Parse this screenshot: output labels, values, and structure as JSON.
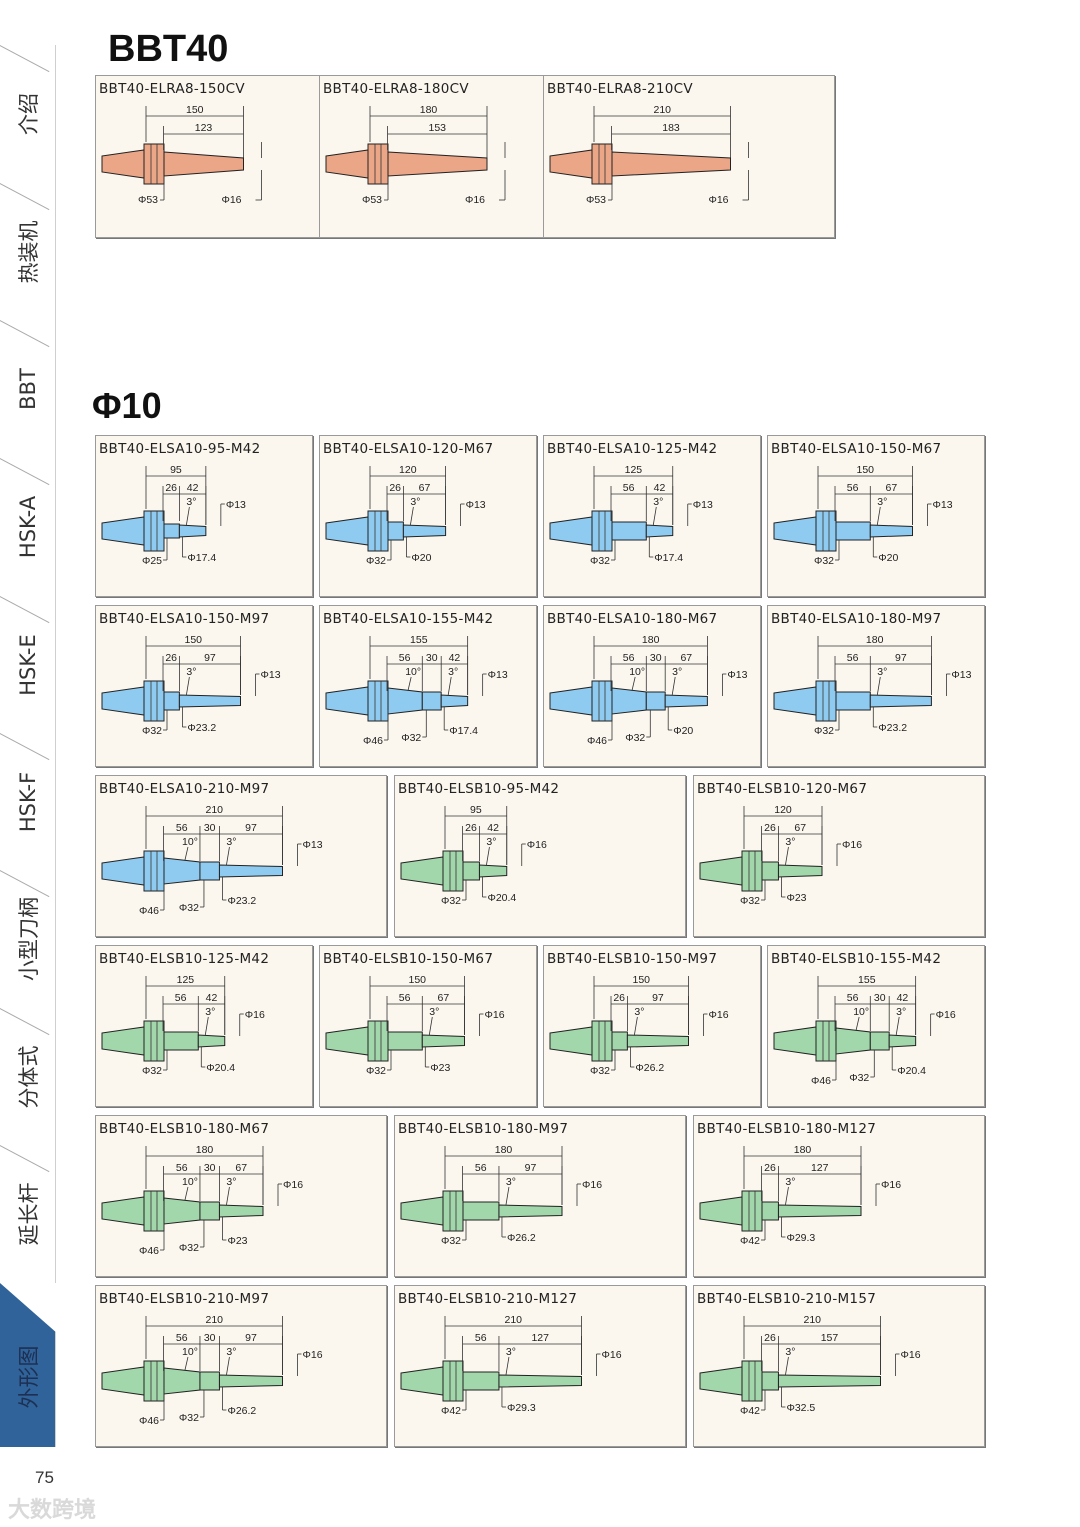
{
  "sidebar": {
    "active_color": "#2f6399",
    "tabs": [
      {
        "label": "介绍",
        "active": false
      },
      {
        "label": "热装机",
        "active": false
      },
      {
        "label": "BBT",
        "active": false
      },
      {
        "label": "HSK-A",
        "active": false
      },
      {
        "label": "HSK-E",
        "active": false
      },
      {
        "label": "HSK-F",
        "active": false
      },
      {
        "label": "小型刀柄",
        "active": false
      },
      {
        "label": "分体式",
        "active": false
      },
      {
        "label": "延长杆",
        "active": false
      },
      {
        "label": "外形图",
        "active": true
      }
    ]
  },
  "colors": {
    "orange": "#eba587",
    "blue": "#8fcaf0",
    "green": "#a2d6ab"
  },
  "sections": [
    {
      "title": "BBT40",
      "rows": [
        [
          {
            "title": "BBT40-ELRA8-150CV",
            "color": "orange",
            "total": "150",
            "second": "123",
            "dias": [
              "Φ53"
            ],
            "tip": "Φ16"
          },
          {
            "title": "BBT40-ELRA8-180CV",
            "color": "orange",
            "total": "180",
            "second": "153",
            "dias": [
              "Φ53"
            ],
            "tip": "Φ16"
          },
          {
            "title": "BBT40-ELRA8-210CV",
            "color": "orange",
            "total": "210",
            "second": "183",
            "dias": [
              "Φ53"
            ],
            "tip": "Φ16"
          }
        ]
      ]
    },
    {
      "title": "Φ10",
      "rows": [
        [
          {
            "title": "BBT40-ELSA10-95-M42",
            "color": "blue",
            "total": "95",
            "segs": [
              "26",
              "42"
            ],
            "angles": [
              "3°"
            ],
            "dias": [
              "Φ25",
              "Φ17.4"
            ],
            "tip": "Φ13"
          },
          {
            "title": "BBT40-ELSA10-120-M67",
            "color": "blue",
            "total": "120",
            "segs": [
              "26",
              "67"
            ],
            "angles": [
              "3°"
            ],
            "dias": [
              "Φ32",
              "Φ20"
            ],
            "tip": "Φ13"
          },
          {
            "title": "BBT40-ELSA10-125-M42",
            "color": "blue",
            "total": "125",
            "segs": [
              "56",
              "42"
            ],
            "angles": [
              "3°"
            ],
            "dias": [
              "Φ32",
              "Φ17.4"
            ],
            "tip": "Φ13"
          },
          {
            "title": "BBT40-ELSA10-150-M67",
            "color": "blue",
            "total": "150",
            "segs": [
              "56",
              "67"
            ],
            "angles": [
              "3°"
            ],
            "dias": [
              "Φ32",
              "Φ20"
            ],
            "tip": "Φ13"
          }
        ],
        [
          {
            "title": "BBT40-ELSA10-150-M97",
            "color": "blue",
            "total": "150",
            "segs": [
              "26",
              "97"
            ],
            "angles": [
              "3°"
            ],
            "dias": [
              "Φ32",
              "Φ23.2"
            ],
            "tip": "Φ13"
          },
          {
            "title": "BBT40-ELSA10-155-M42",
            "color": "blue",
            "total": "155",
            "segs": [
              "56",
              "30",
              "42"
            ],
            "angles": [
              "10°",
              "3°"
            ],
            "dias": [
              "Φ46",
              "Φ32",
              "Φ17.4"
            ],
            "tip": "Φ13"
          },
          {
            "title": "BBT40-ELSA10-180-M67",
            "color": "blue",
            "total": "180",
            "segs": [
              "56",
              "30",
              "67"
            ],
            "angles": [
              "10°",
              "3°"
            ],
            "dias": [
              "Φ46",
              "Φ32",
              "Φ20"
            ],
            "tip": "Φ13"
          },
          {
            "title": "BBT40-ELSA10-180-M97",
            "color": "blue",
            "total": "180",
            "segs": [
              "56",
              "97"
            ],
            "angles": [
              "3°"
            ],
            "dias": [
              "Φ32",
              "Φ23.2"
            ],
            "tip": "Φ13"
          }
        ],
        [
          {
            "title": "BBT40-ELSA10-210-M97",
            "color": "blue",
            "total": "210",
            "segs": [
              "56",
              "30",
              "97"
            ],
            "angles": [
              "10°",
              "3°"
            ],
            "dias": [
              "Φ46",
              "Φ32",
              "Φ23.2"
            ],
            "tip": "Φ13"
          },
          {
            "title": "BBT40-ELSB10-95-M42",
            "color": "green",
            "total": "95",
            "segs": [
              "26",
              "42"
            ],
            "angles": [
              "3°"
            ],
            "dias": [
              "Φ32",
              "Φ20.4"
            ],
            "tip": "Φ16"
          },
          {
            "title": "BBT40-ELSB10-120-M67",
            "color": "green",
            "total": "120",
            "segs": [
              "26",
              "67"
            ],
            "angles": [
              "3°"
            ],
            "dias": [
              "Φ32",
              "Φ23"
            ],
            "tip": "Φ16"
          }
        ],
        [
          {
            "title": "BBT40-ELSB10-125-M42",
            "color": "green",
            "total": "125",
            "segs": [
              "56",
              "42"
            ],
            "angles": [
              "3°"
            ],
            "dias": [
              "Φ32",
              "Φ20.4"
            ],
            "tip": "Φ16"
          },
          {
            "title": "BBT40-ELSB10-150-M67",
            "color": "green",
            "total": "150",
            "segs": [
              "56",
              "67"
            ],
            "angles": [
              "3°"
            ],
            "dias": [
              "Φ32",
              "Φ23"
            ],
            "tip": "Φ16"
          },
          {
            "title": "BBT40-ELSB10-150-M97",
            "color": "green",
            "total": "150",
            "segs": [
              "26",
              "97"
            ],
            "angles": [
              "3°"
            ],
            "dias": [
              "Φ32",
              "Φ26.2"
            ],
            "tip": "Φ16"
          },
          {
            "title": "BBT40-ELSB10-155-M42",
            "color": "green",
            "total": "155",
            "segs": [
              "56",
              "30",
              "42"
            ],
            "angles": [
              "10°",
              "3°"
            ],
            "dias": [
              "Φ46",
              "Φ32",
              "Φ20.4"
            ],
            "tip": "Φ16"
          }
        ],
        [
          {
            "title": "BBT40-ELSB10-180-M67",
            "color": "green",
            "total": "180",
            "segs": [
              "56",
              "30",
              "67"
            ],
            "angles": [
              "10°",
              "3°"
            ],
            "dias": [
              "Φ46",
              "Φ32",
              "Φ23"
            ],
            "tip": "Φ16"
          },
          {
            "title": "BBT40-ELSB10-180-M97",
            "color": "green",
            "total": "180",
            "segs": [
              "56",
              "97"
            ],
            "angles": [
              "3°"
            ],
            "dias": [
              "Φ32",
              "Φ26.2"
            ],
            "tip": "Φ16"
          },
          {
            "title": "BBT40-ELSB10-180-M127",
            "color": "green",
            "total": "180",
            "segs": [
              "26",
              "127"
            ],
            "angles": [
              "3°"
            ],
            "dias": [
              "Φ42",
              "Φ29.3"
            ],
            "tip": "Φ16"
          }
        ],
        [
          {
            "title": "BBT40-ELSB10-210-M97",
            "color": "green",
            "total": "210",
            "segs": [
              "56",
              "30",
              "97"
            ],
            "angles": [
              "10°",
              "3°"
            ],
            "dias": [
              "Φ46",
              "Φ32",
              "Φ26.2"
            ],
            "tip": "Φ16"
          },
          {
            "title": "BBT40-ELSB10-210-M127",
            "color": "green",
            "total": "210",
            "segs": [
              "56",
              "127"
            ],
            "angles": [
              "3°"
            ],
            "dias": [
              "Φ42",
              "Φ29.3"
            ],
            "tip": "Φ16"
          },
          {
            "title": "BBT40-ELSB10-210-M157",
            "color": "green",
            "total": "210",
            "segs": [
              "26",
              "157"
            ],
            "angles": [
              "3°"
            ],
            "dias": [
              "Φ42",
              "Φ32.5"
            ],
            "tip": "Φ16"
          }
        ]
      ]
    }
  ],
  "page_number": "75",
  "watermark": "大数跨境"
}
